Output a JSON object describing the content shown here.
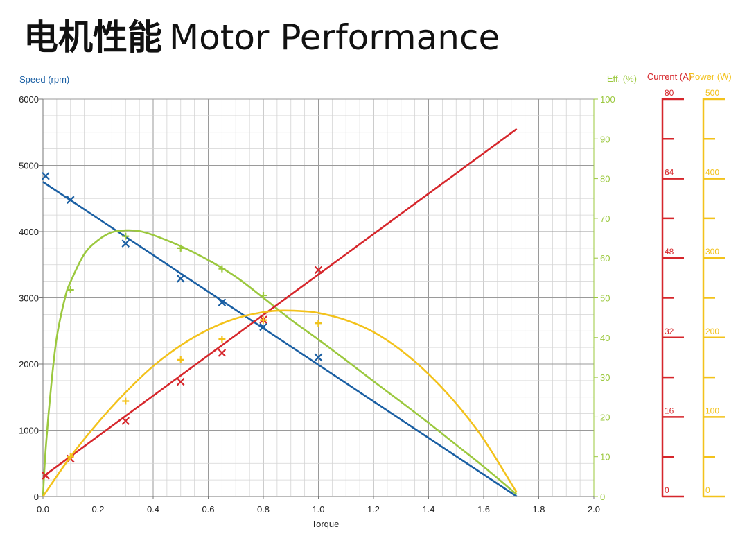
{
  "title": {
    "cn": "电机性能",
    "en": "Motor Performance"
  },
  "chart_data": {
    "type": "line",
    "xlabel": "Torque",
    "xlim": [
      0,
      2.0
    ],
    "x_ticks": [
      "0.0",
      "0.2",
      "0.4",
      "0.6",
      "0.8",
      "1.0",
      "1.2",
      "1.4",
      "1.6",
      "1.8",
      "2.0"
    ],
    "grid": true,
    "axes": {
      "speed": {
        "label": "Speed (rpm)",
        "lim": [
          0,
          6000
        ],
        "ticks": [
          "0",
          "1000",
          "2000",
          "3000",
          "4000",
          "5000",
          "6000"
        ],
        "color": "#1a5fa3"
      },
      "eff": {
        "label": "Eff. (%)",
        "lim": [
          0,
          100
        ],
        "ticks": [
          "0",
          "10",
          "20",
          "30",
          "40",
          "50",
          "60",
          "70",
          "80",
          "90",
          "100"
        ],
        "color": "#9bc83e"
      },
      "current": {
        "label": "Current (A)",
        "lim": [
          0,
          80
        ],
        "ticks": [
          "0",
          "16",
          "32",
          "48",
          "64",
          "80"
        ],
        "color": "#d6262b"
      },
      "power": {
        "label": "Power (W)",
        "lim": [
          0,
          500
        ],
        "ticks": [
          "0",
          "100",
          "200",
          "300",
          "400",
          "500"
        ],
        "color": "#f3c21b"
      }
    },
    "series": [
      {
        "axis": "speed",
        "color": "#1a5fa3",
        "marker": "x",
        "curve": [
          [
            0,
            4750
          ],
          [
            1.72,
            0
          ]
        ],
        "points": [
          [
            0.01,
            4840
          ],
          [
            0.1,
            4480
          ],
          [
            0.3,
            3820
          ],
          [
            0.5,
            3290
          ],
          [
            0.65,
            2930
          ],
          [
            0.8,
            2560
          ],
          [
            1.0,
            2100
          ]
        ]
      },
      {
        "axis": "eff",
        "color": "#9bc83e",
        "marker": "+",
        "curve": [
          [
            0,
            0
          ],
          [
            0.01,
            12
          ],
          [
            0.03,
            28
          ],
          [
            0.05,
            40
          ],
          [
            0.08,
            50
          ],
          [
            0.1,
            54
          ],
          [
            0.15,
            61
          ],
          [
            0.2,
            64.5
          ],
          [
            0.25,
            66.5
          ],
          [
            0.3,
            67
          ],
          [
            0.35,
            66.8
          ],
          [
            0.4,
            65.8
          ],
          [
            0.5,
            63
          ],
          [
            0.6,
            59.5
          ],
          [
            0.7,
            55.3
          ],
          [
            0.8,
            50
          ],
          [
            0.9,
            44.5
          ],
          [
            1.0,
            39.5
          ],
          [
            1.1,
            34.3
          ],
          [
            1.2,
            29
          ],
          [
            1.3,
            23.8
          ],
          [
            1.4,
            18.5
          ],
          [
            1.5,
            13
          ],
          [
            1.6,
            7.5
          ],
          [
            1.72,
            0.5
          ]
        ],
        "points": [
          [
            0.1,
            52
          ],
          [
            0.3,
            65.5
          ],
          [
            0.5,
            62.5
          ],
          [
            0.65,
            57.3
          ],
          [
            0.8,
            50.6
          ],
          [
            1.0,
            43.6
          ]
        ]
      },
      {
        "axis": "current",
        "color": "#d6262b",
        "marker": "x",
        "curve": [
          [
            0,
            4
          ],
          [
            1.72,
            74
          ]
        ],
        "points": [
          [
            0.01,
            4.2
          ],
          [
            0.1,
            7.6
          ],
          [
            0.3,
            15.2
          ],
          [
            0.5,
            23.1
          ],
          [
            0.65,
            28.9
          ],
          [
            0.8,
            35.6
          ],
          [
            1.0,
            45.6
          ]
        ]
      },
      {
        "axis": "power",
        "color": "#f3c21b",
        "marker": "+",
        "curve": [
          [
            0,
            0
          ],
          [
            0.1,
            50
          ],
          [
            0.2,
            93
          ],
          [
            0.3,
            131
          ],
          [
            0.4,
            164
          ],
          [
            0.5,
            190
          ],
          [
            0.6,
            210
          ],
          [
            0.7,
            224
          ],
          [
            0.8,
            232
          ],
          [
            0.87,
            234
          ],
          [
            0.95,
            233
          ],
          [
            1.0,
            231
          ],
          [
            1.1,
            222
          ],
          [
            1.2,
            207
          ],
          [
            1.3,
            184
          ],
          [
            1.4,
            154
          ],
          [
            1.5,
            117
          ],
          [
            1.6,
            72
          ],
          [
            1.72,
            5
          ]
        ],
        "points": [
          [
            0.1,
            50
          ],
          [
            0.3,
            120
          ],
          [
            0.5,
            172
          ],
          [
            0.65,
            198
          ],
          [
            0.8,
            222
          ],
          [
            1.0,
            218
          ]
        ]
      }
    ]
  }
}
